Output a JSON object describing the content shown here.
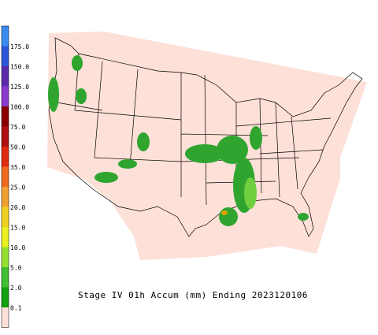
{
  "legend": {
    "labels": [
      "175.0",
      "150.0",
      "125.0",
      "100.0",
      "75.0",
      "50.0",
      "35.0",
      "25.0",
      "20.0",
      "15.0",
      "10.0",
      "5.0",
      "2.0",
      "0.1"
    ]
  },
  "caption": "Stage IV 01h Accum (mm) Ending 2023120106"
}
